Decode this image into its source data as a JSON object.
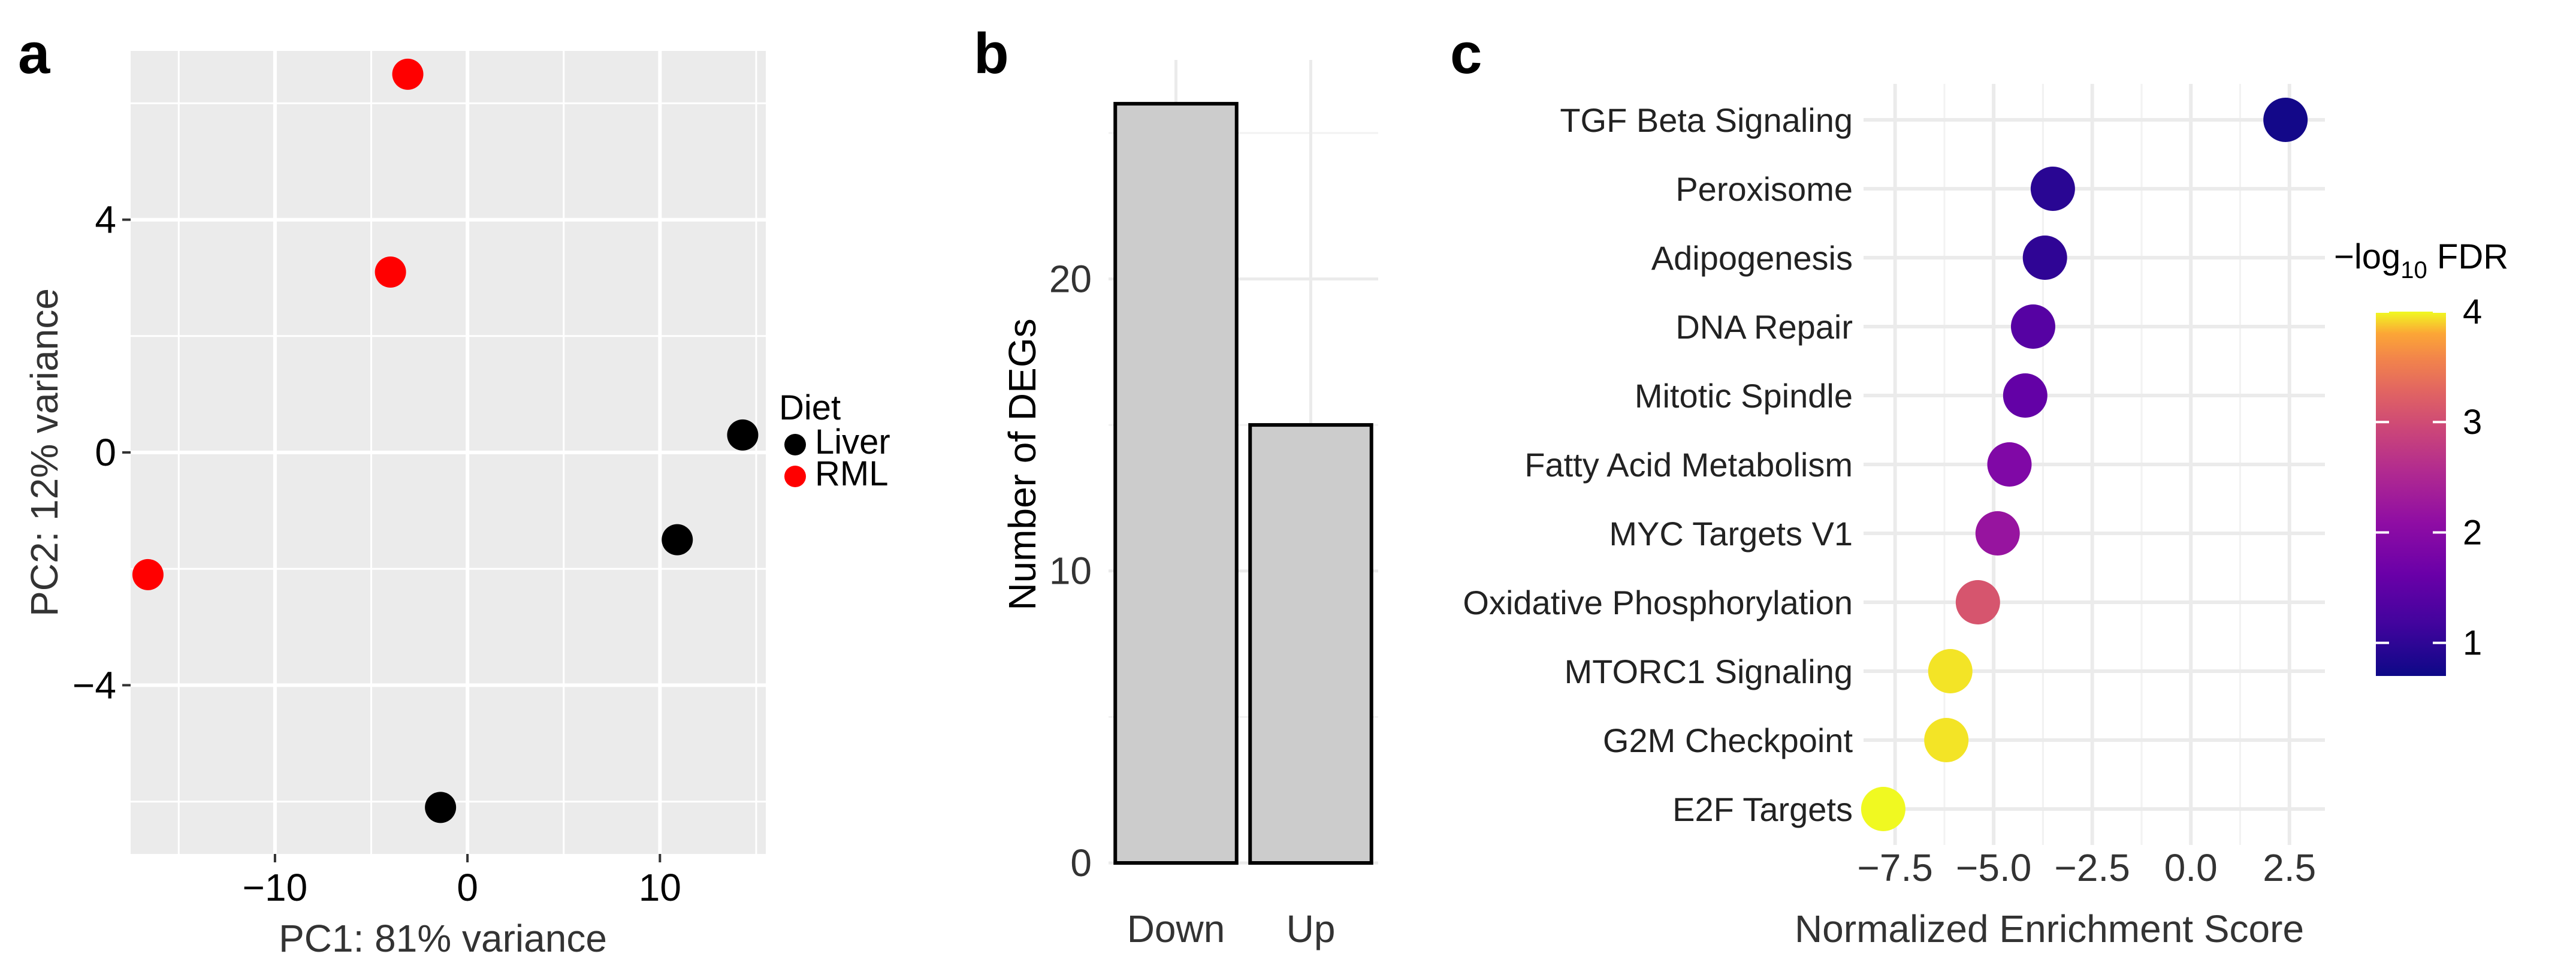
{
  "colors": {
    "panel_bg": "#ebebeb",
    "grid": "#ffffff",
    "liver": "#000000",
    "rml": "#ff0000",
    "bar_fill": "#cccccc",
    "bar_stroke": "#000000",
    "gsea_grid": "#ebebeb"
  },
  "chart_data": [
    {
      "type": "scatter",
      "panel": "a",
      "xlabel": "PC1: 81% variance",
      "ylabel": "PC2: 12% variance",
      "xlim": [
        -17.5,
        15.5
      ],
      "ylim": [
        -6.9,
        6.9
      ],
      "xticks": [
        -10,
        0,
        10
      ],
      "xtick_labels": [
        "−10",
        "0",
        "10"
      ],
      "yticks": [
        -4,
        0,
        4
      ],
      "ytick_labels": [
        "−4",
        "0",
        "4"
      ],
      "legend": {
        "title": "Diet",
        "position": "right",
        "entries": [
          {
            "name": "Liver",
            "color": "#000000"
          },
          {
            "name": "RML",
            "color": "#ff0000"
          }
        ]
      },
      "series": [
        {
          "name": "Liver",
          "points": [
            {
              "x": 14.3,
              "y": 0.3
            },
            {
              "x": 10.9,
              "y": -1.5
            },
            {
              "x": -1.4,
              "y": -6.1
            }
          ]
        },
        {
          "name": "RML",
          "points": [
            {
              "x": -3.1,
              "y": 6.5
            },
            {
              "x": -4.0,
              "y": 3.1
            },
            {
              "x": -16.6,
              "y": -2.1
            }
          ]
        }
      ]
    },
    {
      "type": "bar",
      "panel": "b",
      "categories": [
        "Down",
        "Up"
      ],
      "values": [
        26,
        15
      ],
      "xlabel": "",
      "ylabel": "Number of DEGs",
      "ylim": [
        0,
        27.5
      ],
      "yticks": [
        0,
        10,
        20
      ],
      "ytick_labels": [
        "0",
        "10",
        "20"
      ]
    },
    {
      "type": "scatter",
      "panel": "c",
      "xlabel": "Normalized Enrichment Score",
      "xlim": [
        -8.3,
        3.4
      ],
      "xticks": [
        -7.5,
        -5.0,
        -2.5,
        0.0,
        2.5
      ],
      "xtick_labels": [
        "−7.5",
        "−5.0",
        "−2.5",
        "0.0",
        "2.5"
      ],
      "categories": [
        "TGF Beta Signaling",
        "Peroxisome",
        "Adipogenesis",
        "DNA Repair",
        "Mitotic Spindle",
        "Fatty Acid Metabolism",
        "MYC Targets V1",
        "Oxidative Phosphorylation",
        "MTORC1 Signaling",
        "G2M Checkpoint",
        "E2F Targets"
      ],
      "nes": [
        2.4,
        -3.5,
        -3.7,
        -4.0,
        -4.2,
        -4.6,
        -4.9,
        -5.4,
        -6.1,
        -6.2,
        -7.8
      ],
      "neg_log10_fdr": [
        0.75,
        0.95,
        1.0,
        1.4,
        1.55,
        1.9,
        2.2,
        3.1,
        3.95,
        3.95,
        4.0
      ],
      "colorbar": {
        "title_prefix": "−log",
        "title_sub": "10",
        "title_suffix": " FDR",
        "range": [
          0.7,
          4.0
        ],
        "ticks": [
          1,
          2,
          3,
          4
        ],
        "tick_labels": [
          "1",
          "2",
          "3",
          "4"
        ]
      }
    }
  ],
  "panel_labels": [
    "a",
    "b",
    "c"
  ]
}
